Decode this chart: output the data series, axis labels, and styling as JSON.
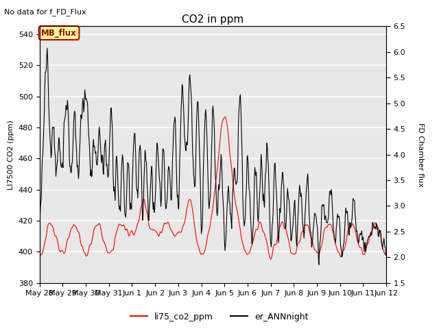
{
  "title": "CO2 in ppm",
  "subtitle": "No data for f_FD_Flux",
  "ylabel_left": "LI7500 CO2 (ppm)",
  "ylabel_right": "FD Chamber flux",
  "ylim_left": [
    380,
    545
  ],
  "ylim_right": [
    1.5,
    6.5
  ],
  "yticks_left": [
    380,
    400,
    420,
    440,
    460,
    480,
    500,
    520,
    540
  ],
  "yticks_right": [
    1.5,
    2.0,
    2.5,
    3.0,
    3.5,
    4.0,
    4.5,
    5.0,
    5.5,
    6.0,
    6.5
  ],
  "legend_labels": [
    "li75_co2_ppm",
    "er_ANNnight"
  ],
  "legend_colors": [
    "red",
    "black"
  ],
  "annotation_box": "MB_flux",
  "annotation_box_color": "#ffff99",
  "annotation_box_border": "#cc0000",
  "bg_color": "#e8e8e8",
  "grid_color": "white",
  "xtick_labels": [
    "May 28",
    "May 29",
    "May 30",
    "May 31",
    "Jun 1",
    "Jun 2",
    "Jun 3",
    "Jun 4",
    "Jun 5",
    "Jun 6",
    "Jun 7",
    "Jun 8",
    "Jun 9",
    "Jun 10",
    "Jun 11",
    "Jun 12"
  ]
}
